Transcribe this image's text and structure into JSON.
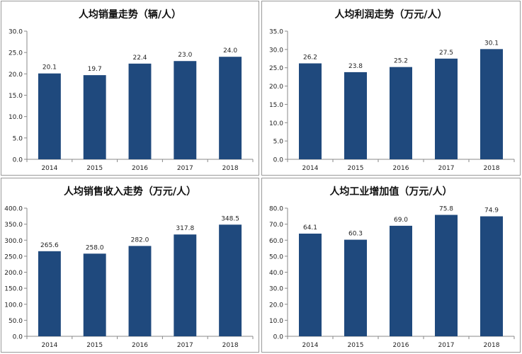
{
  "colors": {
    "bar": "#1f497d",
    "axis": "#888888",
    "grid": "#d9d9d9",
    "text": "#222222"
  },
  "chart_data": [
    {
      "type": "bar",
      "title": "人均销量走势（辆/人）",
      "categories": [
        "2014",
        "2015",
        "2016",
        "2017",
        "2018"
      ],
      "values": [
        20.1,
        19.7,
        22.4,
        23.0,
        24.0
      ],
      "value_labels": [
        "20.1",
        "19.7",
        "22.4",
        "23.0",
        "24.0"
      ],
      "ylim": [
        0,
        30
      ],
      "yticks": [
        "0.0",
        "5.0",
        "10.0",
        "15.0",
        "20.0",
        "25.0",
        "30.0"
      ],
      "xlabel": "",
      "ylabel": "",
      "grid": false
    },
    {
      "type": "bar",
      "title": "人均利润走势（万元/人）",
      "categories": [
        "2014",
        "2015",
        "2016",
        "2017",
        "2018"
      ],
      "values": [
        26.2,
        23.8,
        25.2,
        27.5,
        30.1
      ],
      "value_labels": [
        "26.2",
        "23.8",
        "25.2",
        "27.5",
        "30.1"
      ],
      "ylim": [
        0,
        35
      ],
      "yticks": [
        "0.0",
        "5.0",
        "10.0",
        "15.0",
        "20.0",
        "25.0",
        "30.0",
        "35.0"
      ],
      "xlabel": "",
      "ylabel": "",
      "grid": false
    },
    {
      "type": "bar",
      "title": "人均销售收入走势（万元/人）",
      "categories": [
        "2014",
        "2015",
        "2016",
        "2017",
        "2018"
      ],
      "values": [
        265.6,
        258.0,
        282.0,
        317.8,
        348.5
      ],
      "value_labels": [
        "265.6",
        "258.0",
        "282.0",
        "317.8",
        "348.5"
      ],
      "ylim": [
        0,
        400
      ],
      "yticks": [
        "0.0",
        "50.0",
        "100.0",
        "150.0",
        "200.0",
        "250.0",
        "300.0",
        "350.0",
        "400.0"
      ],
      "xlabel": "",
      "ylabel": "",
      "grid": false
    },
    {
      "type": "bar",
      "title": "人均工业增加值（万元/人）",
      "categories": [
        "2014",
        "2015",
        "2016",
        "2017",
        "2018"
      ],
      "values": [
        64.1,
        60.3,
        69.0,
        75.8,
        74.9
      ],
      "value_labels": [
        "64.1",
        "60.3",
        "69.0",
        "75.8",
        "74.9"
      ],
      "ylim": [
        0,
        80
      ],
      "yticks": [
        "0.0",
        "10.0",
        "20.0",
        "30.0",
        "40.0",
        "50.0",
        "60.0",
        "70.0",
        "80.0"
      ],
      "xlabel": "",
      "ylabel": "",
      "grid": false
    }
  ]
}
